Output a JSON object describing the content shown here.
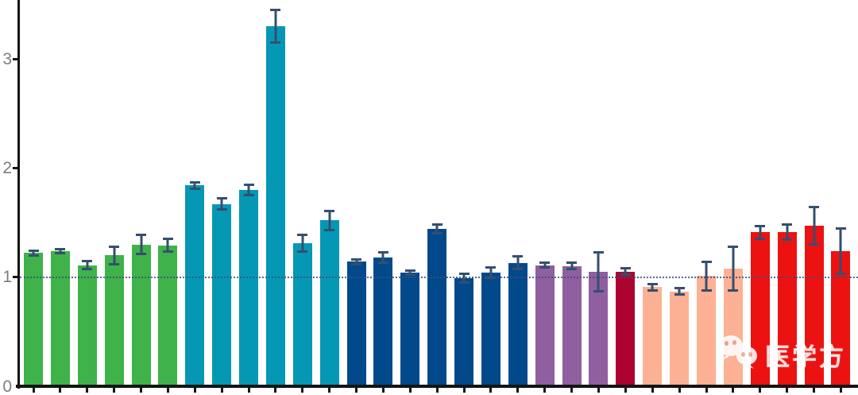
{
  "watermark": {
    "text": "医学方",
    "icon": "wechat-icon"
  },
  "axis_colors": {
    "axis_line": "#141414",
    "tick_label": "#7d7d7d",
    "error_bar": "#344f6e",
    "reference_line": "#3f4d7e"
  },
  "chart_data": {
    "type": "bar",
    "title": "",
    "xlabel": "",
    "ylabel": "",
    "ylim": [
      0,
      3.5
    ],
    "yticks": [
      "0",
      "1",
      "2",
      "3"
    ],
    "x_tick_labels": [],
    "grid": false,
    "legend": false,
    "reference_line_y": 1,
    "error_bars": true,
    "palette": {
      "green": "#3fb24a",
      "teal": "#0598b4",
      "navy": "#02498c",
      "purple": "#8f5fa0",
      "maroon": "#ac0330",
      "salmon": "#fcb094",
      "red": "#ec1212"
    },
    "bars": [
      {
        "value": 1.22,
        "error": 0.03,
        "group": "green"
      },
      {
        "value": 1.24,
        "error": 0.03,
        "group": "green"
      },
      {
        "value": 1.11,
        "error": 0.05,
        "group": "green"
      },
      {
        "value": 1.2,
        "error": 0.09,
        "group": "green"
      },
      {
        "value": 1.3,
        "error": 0.1,
        "group": "green"
      },
      {
        "value": 1.29,
        "error": 0.07,
        "group": "green"
      },
      {
        "value": 1.84,
        "error": 0.04,
        "group": "teal"
      },
      {
        "value": 1.67,
        "error": 0.06,
        "group": "teal"
      },
      {
        "value": 1.8,
        "error": 0.06,
        "group": "teal"
      },
      {
        "value": 3.3,
        "error": 0.16,
        "group": "teal"
      },
      {
        "value": 1.31,
        "error": 0.09,
        "group": "teal"
      },
      {
        "value": 1.52,
        "error": 0.1,
        "group": "teal"
      },
      {
        "value": 1.14,
        "error": 0.03,
        "group": "navy"
      },
      {
        "value": 1.18,
        "error": 0.06,
        "group": "navy"
      },
      {
        "value": 1.04,
        "error": 0.03,
        "group": "navy"
      },
      {
        "value": 1.44,
        "error": 0.05,
        "group": "navy"
      },
      {
        "value": 0.99,
        "error": 0.05,
        "group": "navy"
      },
      {
        "value": 1.04,
        "error": 0.06,
        "group": "navy"
      },
      {
        "value": 1.13,
        "error": 0.07,
        "group": "navy"
      },
      {
        "value": 1.11,
        "error": 0.03,
        "group": "purple"
      },
      {
        "value": 1.1,
        "error": 0.04,
        "group": "purple"
      },
      {
        "value": 1.05,
        "error": 0.19,
        "group": "purple"
      },
      {
        "value": 1.05,
        "error": 0.04,
        "group": "maroon"
      },
      {
        "value": 0.91,
        "error": 0.04,
        "group": "salmon"
      },
      {
        "value": 0.87,
        "error": 0.04,
        "group": "salmon"
      },
      {
        "value": 1.01,
        "error": 0.14,
        "group": "salmon"
      },
      {
        "value": 1.08,
        "error": 0.21,
        "group": "salmon"
      },
      {
        "value": 1.41,
        "error": 0.07,
        "group": "red"
      },
      {
        "value": 1.41,
        "error": 0.08,
        "group": "red"
      },
      {
        "value": 1.47,
        "error": 0.18,
        "group": "red"
      },
      {
        "value": 1.24,
        "error": 0.22,
        "group": "red"
      }
    ]
  }
}
